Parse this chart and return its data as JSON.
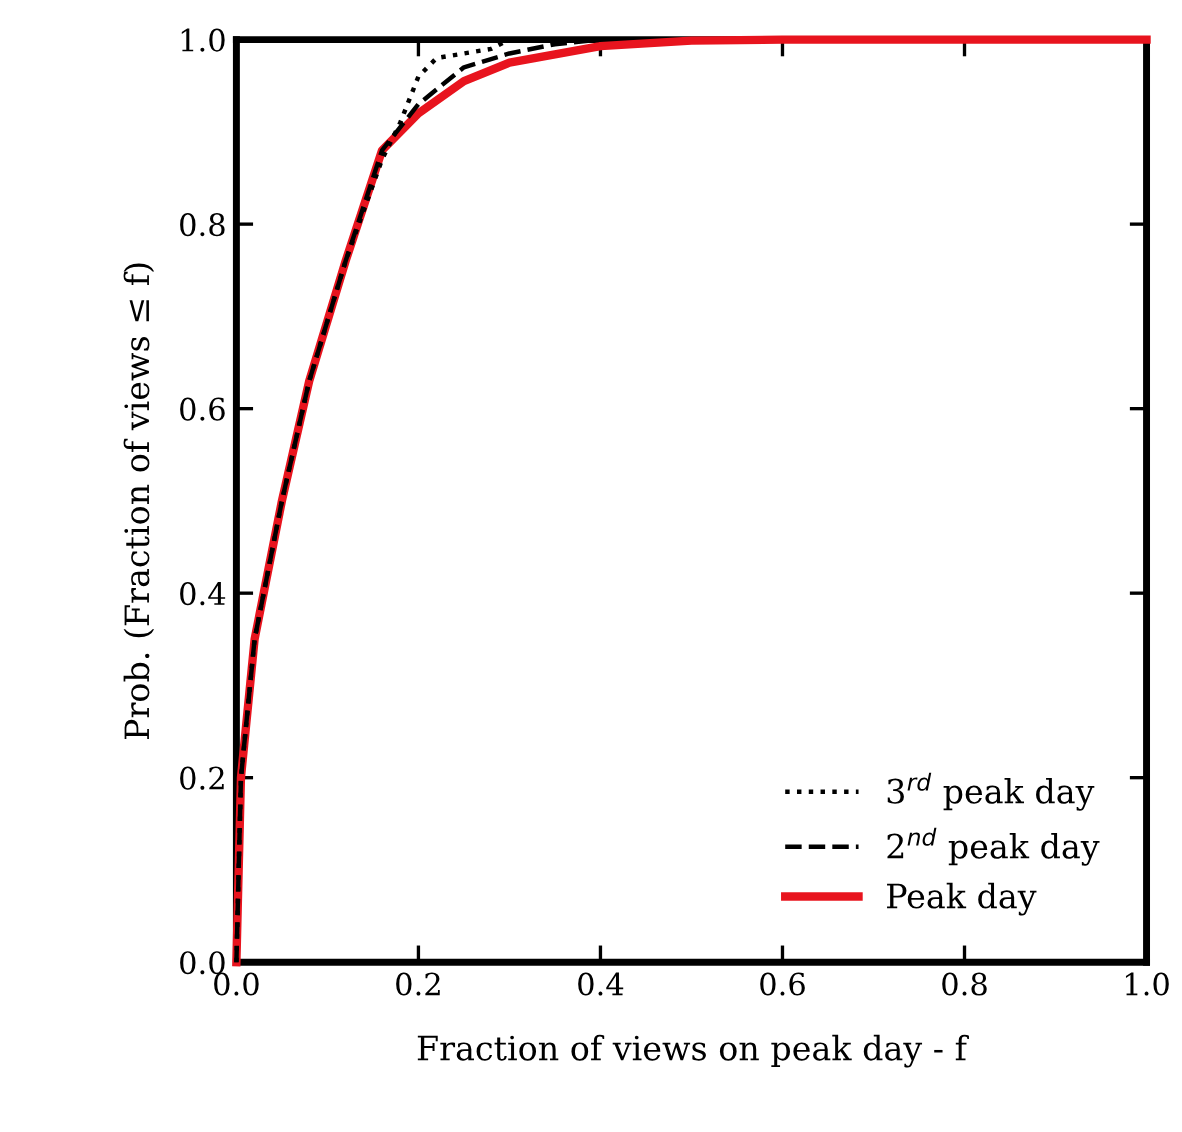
{
  "chart_data": {
    "type": "line",
    "xlabel": "Fraction of views on peak day - f",
    "ylabel": "Prob. (Fraction of views ≤ f)",
    "xlim": [
      0,
      1
    ],
    "ylim": [
      0,
      1
    ],
    "xticks": [
      {
        "value": 0,
        "label": "0.0"
      },
      {
        "value": 0.2,
        "label": "0.2"
      },
      {
        "value": 0.4,
        "label": "0.4"
      },
      {
        "value": 0.6,
        "label": "0.6"
      },
      {
        "value": 0.8,
        "label": "0.8"
      },
      {
        "value": 1,
        "label": "1.0"
      }
    ],
    "yticks": [
      {
        "value": 0,
        "label": "0.0"
      },
      {
        "value": 0.2,
        "label": "0.2"
      },
      {
        "value": 0.4,
        "label": "0.4"
      },
      {
        "value": 0.6,
        "label": "0.6"
      },
      {
        "value": 0.8,
        "label": "0.8"
      },
      {
        "value": 1,
        "label": "1.0"
      }
    ],
    "grid": false,
    "legend": "bottom right",
    "marker": "none",
    "series": [
      {
        "name": "3$^{rd}$ peak day",
        "color": "#000000",
        "line_style": "dotted",
        "x": [
          0,
          0.005,
          0.02,
          0.05,
          0.08,
          0.12,
          0.16,
          0.18,
          0.2,
          0.22,
          0.25,
          0.28,
          0.3
        ],
        "values": [
          0,
          0.2,
          0.35,
          0.5,
          0.63,
          0.76,
          0.87,
          0.91,
          0.96,
          0.98,
          0.985,
          0.99,
          1.0
        ]
      },
      {
        "name": "2$^{nd}$ peak day",
        "color": "#000000",
        "line_style": "dashed",
        "x": [
          0,
          0.005,
          0.02,
          0.05,
          0.08,
          0.12,
          0.16,
          0.2,
          0.25,
          0.3,
          0.35,
          0.4
        ],
        "values": [
          0,
          0.2,
          0.35,
          0.5,
          0.63,
          0.76,
          0.88,
          0.93,
          0.97,
          0.985,
          0.995,
          1.0
        ]
      },
      {
        "name": "Peak day",
        "color": "#e8141e",
        "line_style": "solid",
        "x": [
          0,
          0.005,
          0.02,
          0.05,
          0.08,
          0.12,
          0.16,
          0.2,
          0.25,
          0.3,
          0.4,
          0.5,
          0.6,
          1.0
        ],
        "values": [
          0,
          0.2,
          0.35,
          0.5,
          0.63,
          0.76,
          0.88,
          0.92,
          0.955,
          0.975,
          0.993,
          0.999,
          1.0,
          1.0
        ]
      }
    ]
  }
}
